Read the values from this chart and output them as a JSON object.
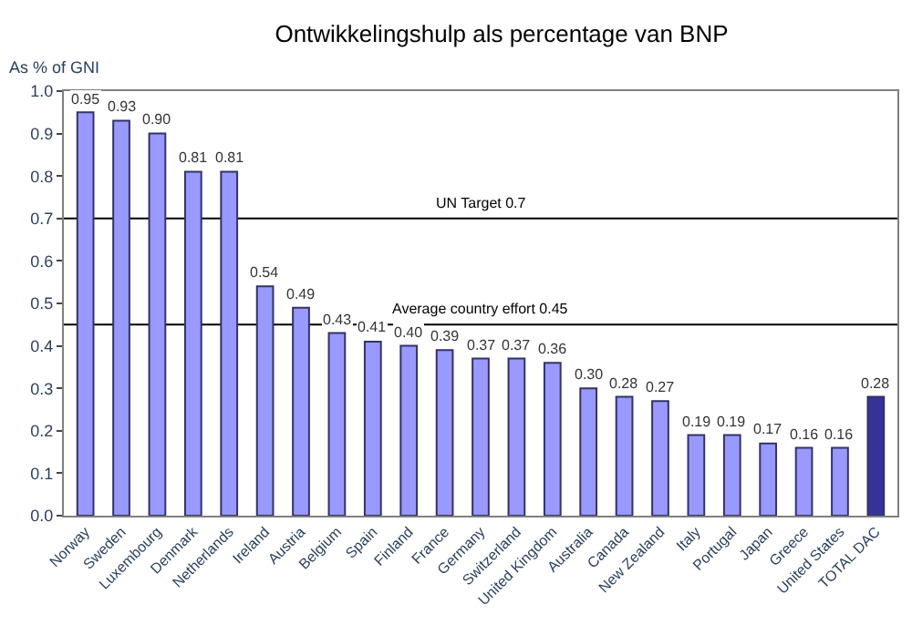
{
  "chart_data": {
    "type": "bar",
    "title": "Ontwikkelingshulp als percentage van BNP",
    "ylabel": "As % of GNI",
    "categories": [
      "Norway",
      "Sweden",
      "Luxembourg",
      "Denmark",
      "Netherlands",
      "Ireland",
      "Austria",
      "Belgium",
      "Spain",
      "Finland",
      "France",
      "Germany",
      "Switzerland",
      "United Kingdom",
      "Australia",
      "Canada",
      "New Zealand",
      "Italy",
      "Portugal",
      "Japan",
      "Greece",
      "United States",
      "TOTAL DAC"
    ],
    "values": [
      0.95,
      0.93,
      0.9,
      0.81,
      0.81,
      0.54,
      0.49,
      0.43,
      0.41,
      0.4,
      0.39,
      0.37,
      0.37,
      0.36,
      0.3,
      0.28,
      0.27,
      0.19,
      0.19,
      0.17,
      0.16,
      0.16,
      0.28
    ],
    "colors": [
      "#9999ff",
      "#9999ff",
      "#9999ff",
      "#9999ff",
      "#9999ff",
      "#9999ff",
      "#9999ff",
      "#9999ff",
      "#9999ff",
      "#9999ff",
      "#9999ff",
      "#9999ff",
      "#9999ff",
      "#9999ff",
      "#9999ff",
      "#9999ff",
      "#9999ff",
      "#9999ff",
      "#9999ff",
      "#9999ff",
      "#9999ff",
      "#9999ff",
      "#333399"
    ],
    "value_labels": [
      "0.95",
      "0.93",
      "0.90",
      "0.81",
      "0.81",
      "0.54",
      "0.49",
      "0.43",
      "0.41",
      "0.40",
      "0.39",
      "0.37",
      "0.37",
      "0.36",
      "0.30",
      "0.28",
      "0.27",
      "0.19",
      "0.19",
      "0.17",
      "0.16",
      "0.16",
      "0.28"
    ],
    "ylim": [
      0,
      1.0
    ],
    "yticks": [
      "0.0",
      "0.1",
      "0.2",
      "0.3",
      "0.4",
      "0.5",
      "0.6",
      "0.7",
      "0.8",
      "0.9",
      "1.0"
    ],
    "ref_lines": [
      {
        "axis": "y",
        "value": 0.7,
        "label": "UN Target 0.7",
        "color": "#000000"
      },
      {
        "axis": "y",
        "value": 0.45,
        "label": "Average country effort 0.45",
        "color": "#000000"
      }
    ],
    "legend": false
  }
}
